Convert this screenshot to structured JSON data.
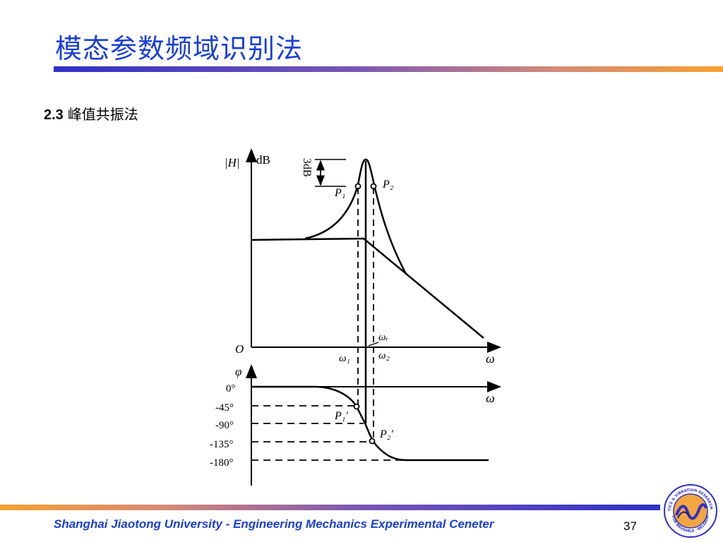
{
  "slide": {
    "title": "模态参数频域识别法",
    "section_number": "2.3",
    "section_title": "峰值共振法"
  },
  "diagram": {
    "magnitude_axis_label": "|H|",
    "magnitude_unit": "dB",
    "origin_label": "O",
    "omega_label": "ω",
    "bandwidth_label": "3dB",
    "point_p1": "P₁",
    "point_p2": "P₂",
    "omega_r": "ωᵣ",
    "omega_1": "ω₁",
    "omega_2": "ω₂",
    "phase_axis_label": "φ",
    "phase_omega_label": "ω",
    "phase_ticks": [
      "0°",
      "-45°",
      "-90°",
      "-135°",
      "-180°"
    ],
    "point_p1_prime": "P₁′",
    "point_p2_prime": "P₂′"
  },
  "footer": {
    "text": "Shanghai Jiaotong University - Engineering Mechanics Experimental Ceneter",
    "page_number": "37"
  },
  "logo": {
    "ring_text": "ACOUSTICS & VIBRATION RESEARCH GROUP",
    "ring_text_bottom": "VUB BRUSSELS · BELGIUM"
  },
  "colors": {
    "title": "#1a3fd6",
    "footer_text": "#1a3fd6",
    "bar_blue": "#2d30c8",
    "bar_orange": "#f7a030"
  }
}
